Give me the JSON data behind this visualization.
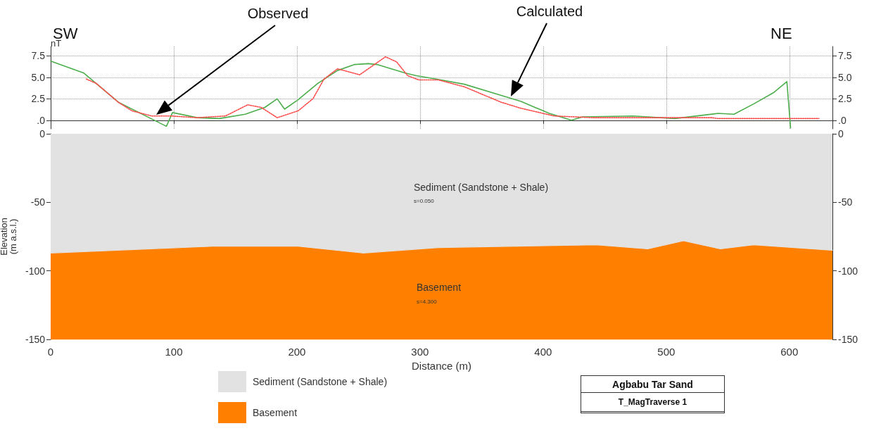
{
  "chart_data": [
    {
      "type": "line",
      "ylabel": "nT",
      "xlim": [
        0,
        635
      ],
      "xticks": [
        0,
        100,
        200,
        300,
        400,
        500,
        600
      ],
      "ylim": [
        -1,
        8.6
      ],
      "yticks": [
        {
          "value": 0,
          "label": ".0"
        },
        2.5,
        {
          "value": 5,
          "label": "5.0"
        },
        7.5
      ],
      "y2lim": [
        -1,
        8.6
      ],
      "y2ticks": [
        {
          "value": 0,
          "label": ".0"
        },
        2.5,
        {
          "value": 5,
          "label": "5.0"
        },
        7.5
      ],
      "tick_labels": "y",
      "grid": true,
      "annotations": [
        "SW",
        "NE",
        "Observed",
        "Calculated"
      ],
      "series": [
        {
          "color": "#4cae4c",
          "line_style": "solid",
          "x": [
            0,
            27,
            55,
            80,
            94,
            99,
            119,
            137,
            158,
            174,
            184,
            190,
            201,
            217,
            233,
            247,
            258,
            265,
            288,
            297,
            313,
            336,
            366,
            382,
            405,
            423,
            432,
            473,
            507,
            542,
            555,
            571,
            587,
            598,
            601
          ],
          "values": [
            6.9,
            5.5,
            2.1,
            0.3,
            -0.7,
            0.9,
            0.3,
            0.2,
            0.7,
            1.5,
            2.5,
            1.3,
            2.4,
            4.3,
            5.8,
            6.5,
            6.6,
            6.5,
            5.5,
            5.2,
            4.8,
            4.2,
            2.9,
            2.2,
            0.8,
            0,
            0.4,
            0.5,
            0.2,
            0.8,
            0.7,
            1.9,
            3.2,
            4.5,
            -0.9
          ]
        },
        {
          "color": "#ff4a4a",
          "line_style": "dotted",
          "x": [
            29,
            37,
            55,
            66,
            82,
            98,
            119,
            142,
            160,
            171,
            184,
            201,
            213,
            222,
            233,
            251,
            263,
            272,
            281,
            290,
            299,
            315,
            336,
            366,
            382,
            409,
            441,
            496,
            537,
            542,
            624
          ],
          "values": [
            4.8,
            4.3,
            2.1,
            1.1,
            0.5,
            0.5,
            0.3,
            0.5,
            1.8,
            1.5,
            0.3,
            1.1,
            2.5,
            4.8,
            6.0,
            5.3,
            6.5,
            7.4,
            6.8,
            5.2,
            4.7,
            4.7,
            3.9,
            2.1,
            1.4,
            0.5,
            0.3,
            0.3,
            0.3,
            0.2,
            0.2
          ]
        }
      ]
    },
    {
      "type": "area",
      "stacked": true,
      "xlabel": "Distance (m)",
      "ylabel": "Elevation\n(m a.s.l.)",
      "legend": "bottom",
      "xlim": [
        0,
        635
      ],
      "xticks": [
        0,
        100,
        200,
        300,
        400,
        500,
        600
      ],
      "ylim": [
        -150,
        0
      ],
      "yticks": [
        0,
        -50,
        -100,
        -150
      ],
      "y2lim": [
        -150,
        0
      ],
      "y2ticks": [
        0,
        -50,
        -100,
        -150
      ],
      "annotations": [
        "Sediment (Sandstone + Shale)",
        "s=0.050",
        "Basement",
        "s=4.300",
        "Agbabu Tar Sand",
        "T_MagTraverse 1"
      ],
      "x": [
        0,
        132,
        201,
        254,
        315,
        443,
        485,
        514,
        544,
        571,
        635
      ],
      "series": [
        {
          "name": "Sediment (Sandstone + Shale)",
          "color": "#e2e2e2",
          "values": [
            -87,
            -82,
            -82,
            -87,
            -83,
            -81,
            -84,
            -78,
            -84,
            -81,
            -85
          ]
        },
        {
          "name": "Basement",
          "color": "#ff8000",
          "values": [
            -63,
            -68,
            -68,
            -63,
            -67,
            -69,
            -66,
            -72,
            -66,
            -69,
            -65
          ]
        }
      ]
    }
  ]
}
